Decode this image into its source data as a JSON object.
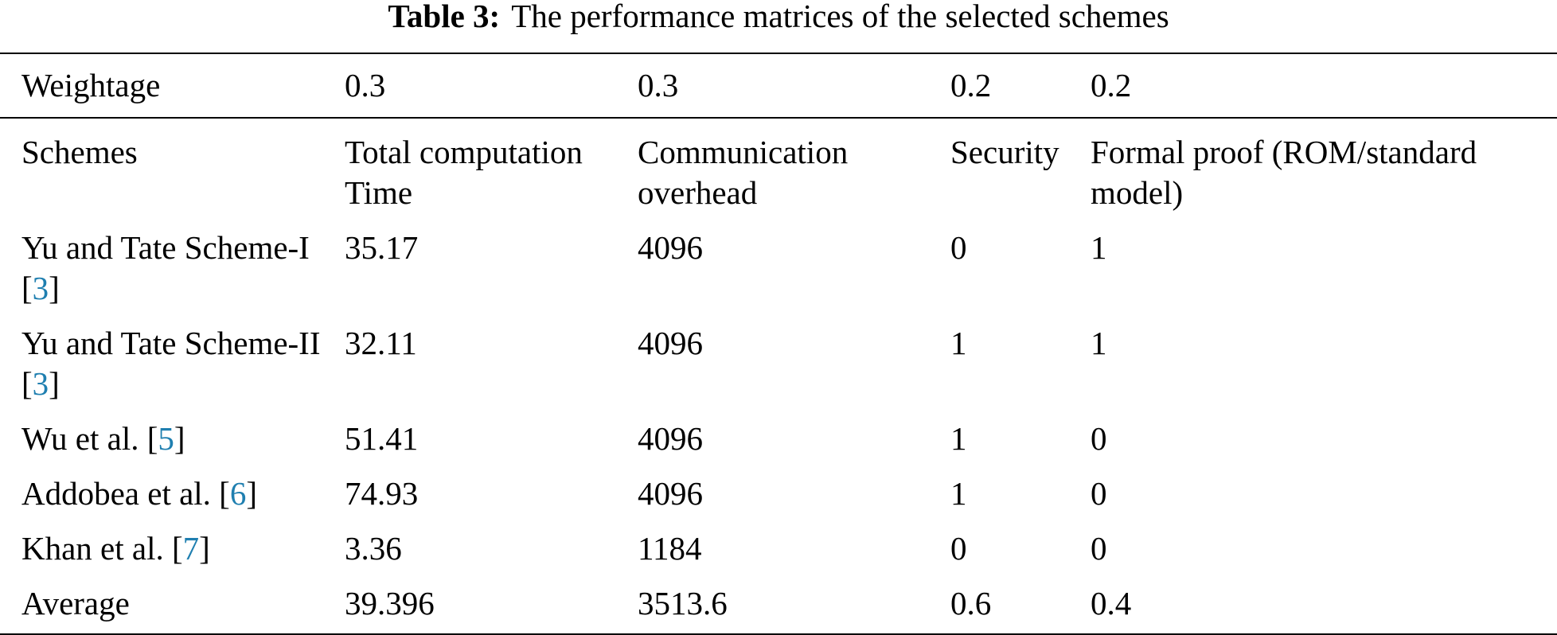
{
  "caption": {
    "label": "Table 3:",
    "title": "The performance matrices of the selected schemes"
  },
  "table": {
    "weightage": [
      "Weightage",
      "0.3",
      "0.3",
      "0.2",
      "0.2"
    ],
    "header": [
      "Schemes",
      "Total computation Time",
      "Communication overhead",
      "Security",
      "Formal proof (ROM/standard model)"
    ],
    "rows": [
      [
        [
          "Yu and Tate Scheme-I [",
          "3",
          "]"
        ],
        "35.17",
        "4096",
        "0",
        "1"
      ],
      [
        [
          "Yu and Tate Scheme-II [",
          "3",
          "]"
        ],
        "32.11",
        "4096",
        "1",
        "1"
      ],
      [
        [
          "Wu et al. [",
          "5",
          "]"
        ],
        "51.41",
        "4096",
        "1",
        "0"
      ],
      [
        [
          "Addobea et al. [",
          "6",
          "]"
        ],
        "74.93",
        "4096",
        "1",
        "0"
      ],
      [
        [
          "Khan et al. [",
          "7",
          "]"
        ],
        "3.36",
        "1184",
        "0",
        "0"
      ],
      [
        "Average",
        "39.396",
        "3513.6",
        "0.6",
        "0.4"
      ]
    ]
  }
}
